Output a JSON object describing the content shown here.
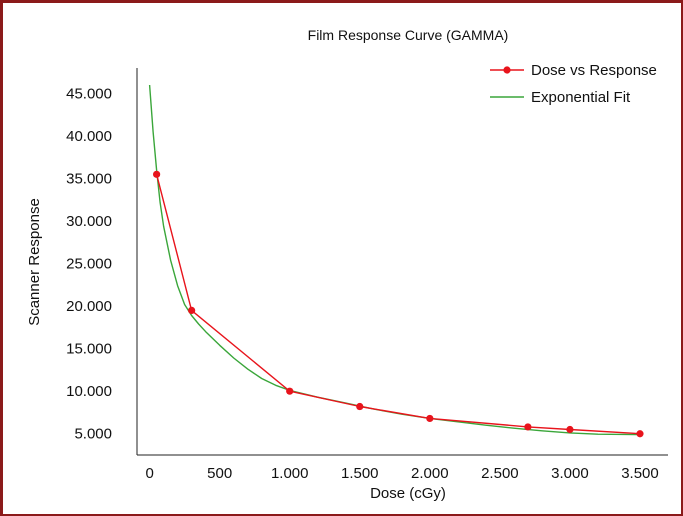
{
  "chart_data": {
    "type": "line",
    "title": "Film Response Curve (GAMMA)",
    "xlabel": "Dose (cGy)",
    "ylabel": "Scanner Response",
    "xlim": [
      -90,
      3700
    ],
    "ylim": [
      2500,
      48000
    ],
    "x_ticks": [
      0,
      500,
      1000,
      1500,
      2000,
      2500,
      3000,
      3500
    ],
    "x_tick_labels": [
      "0",
      "500",
      "1.000",
      "1.500",
      "2.000",
      "2.500",
      "3.000",
      "3.500"
    ],
    "y_ticks": [
      5000,
      10000,
      15000,
      20000,
      25000,
      30000,
      35000,
      40000,
      45000
    ],
    "y_tick_labels": [
      "5.000",
      "10.000",
      "15.000",
      "20.000",
      "25.000",
      "30.000",
      "35.000",
      "40.000",
      "45.000"
    ],
    "legend_position": "top-right",
    "grid": false,
    "series": [
      {
        "name": "Dose vs Response",
        "kind": "line-markers",
        "color": "#e8141c",
        "x": [
          50,
          300,
          1000,
          1500,
          2000,
          2700,
          3000,
          3500
        ],
        "y": [
          35500,
          19500,
          10000,
          8200,
          6800,
          5800,
          5500,
          5000
        ]
      },
      {
        "name": "Exponential Fit",
        "kind": "line",
        "color": "#3aa63a",
        "x": [
          0,
          25,
          50,
          75,
          100,
          150,
          200,
          250,
          300,
          350,
          400,
          500,
          600,
          700,
          800,
          900,
          1000,
          1200,
          1400,
          1600,
          1800,
          2000,
          2200,
          2400,
          2600,
          2800,
          3000,
          3200,
          3500
        ],
        "y": [
          46000,
          40500,
          36000,
          32200,
          29400,
          25400,
          22400,
          20200,
          18900,
          17900,
          17000,
          15400,
          13900,
          12600,
          11500,
          10700,
          10100,
          9300,
          8600,
          7900,
          7300,
          6800,
          6400,
          6000,
          5650,
          5350,
          5100,
          4950,
          4900
        ]
      }
    ]
  }
}
